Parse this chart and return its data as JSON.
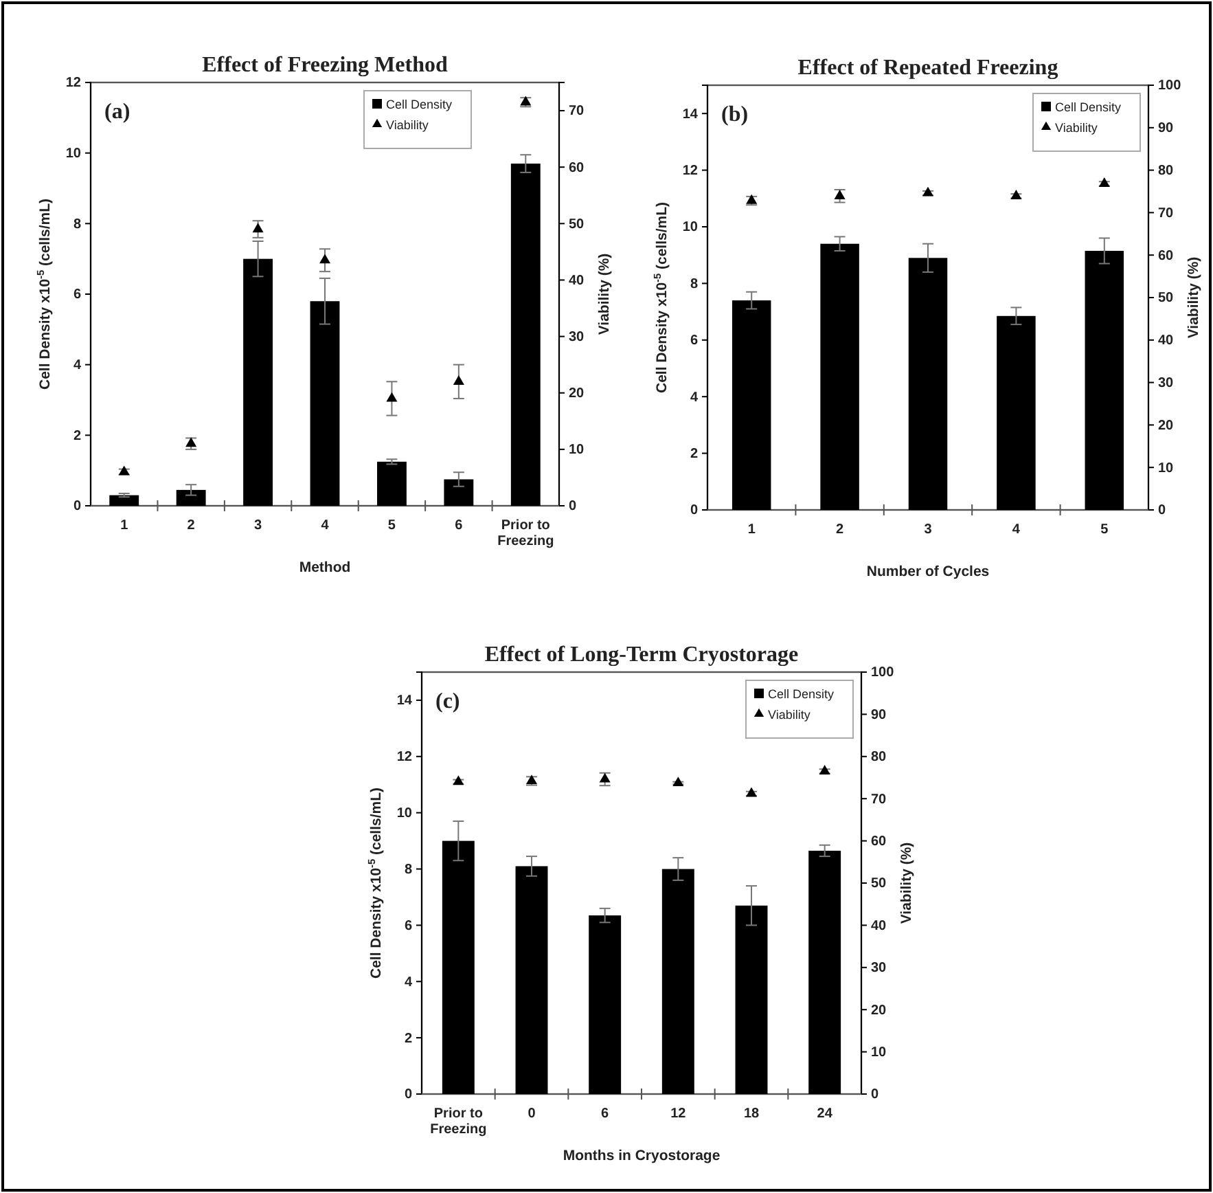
{
  "chart_data": [
    {
      "type": "bar",
      "title": "Effect of Freezing Method",
      "xlabel": "Method",
      "ylabel": "Cell Density x10$^{-5}$ (cells/mL)",
      "y2label": "Viability (%)",
      "annotations": [
        "(a)"
      ],
      "categories": [
        "1",
        "2",
        "3",
        "4",
        "5",
        "6",
        "Prior to Freezing"
      ],
      "ylim": [
        0,
        12
      ],
      "yticks": [
        0,
        2,
        4,
        6,
        8,
        10,
        12
      ],
      "y2lim": [
        0,
        75
      ],
      "y2ticks": [
        0,
        10,
        20,
        30,
        40,
        50,
        60,
        70
      ],
      "legend": "top right",
      "grid": false,
      "series": [
        {
          "name": "Cell Density",
          "color": "#000000",
          "values": [
            0.3,
            0.45,
            7.0,
            5.8,
            1.25,
            0.75,
            9.7
          ],
          "errors": [
            0.05,
            0.15,
            0.5,
            0.65,
            0.07,
            0.2,
            0.25
          ]
        },
        {
          "type": "scatter",
          "name": "Viability",
          "color": "#000000",
          "axis": "y2",
          "marker": "triangle",
          "values": [
            6,
            11,
            49,
            43.5,
            19,
            22,
            71.5
          ],
          "errors": [
            0.5,
            1,
            1.5,
            2,
            3,
            3,
            0.8
          ]
        }
      ]
    },
    {
      "type": "bar",
      "title": "Effect of Repeated Freezing",
      "xlabel": "Number of Cycles",
      "ylabel": "Cell Density x10$^{-5}$ (cells/mL)",
      "y2label": "Viability (%)",
      "annotations": [
        "(b)"
      ],
      "categories": [
        "1",
        "2",
        "3",
        "4",
        "5"
      ],
      "ylim": [
        0,
        15
      ],
      "yticks": [
        0,
        2,
        4,
        6,
        8,
        10,
        12,
        14
      ],
      "y2lim": [
        0,
        100
      ],
      "y2ticks": [
        0,
        10,
        20,
        30,
        40,
        50,
        60,
        70,
        80,
        90,
        100
      ],
      "legend": "top right",
      "grid": false,
      "series": [
        {
          "name": "Cell Density",
          "color": "#000000",
          "values": [
            7.4,
            9.4,
            8.9,
            6.85,
            9.15
          ],
          "errors": [
            0.3,
            0.25,
            0.5,
            0.3,
            0.45
          ]
        },
        {
          "type": "scatter",
          "name": "Viability",
          "color": "#000000",
          "axis": "y2",
          "marker": "triangle",
          "values": [
            72.8,
            73.9,
            74.6,
            73.9,
            76.8
          ],
          "errors": [
            1,
            1.5,
            0.5,
            0.5,
            0.5
          ]
        }
      ]
    },
    {
      "type": "bar",
      "title": "Effect of Long-Term Cryostorage",
      "xlabel": "Months in Cryostorage",
      "ylabel": "Cell Density x10$^{-5}$ (cells/mL)",
      "y2label": "Viability (%)",
      "annotations": [
        "(c)"
      ],
      "categories": [
        "Prior to Freezing",
        "0",
        "6",
        "12",
        "18",
        "24"
      ],
      "ylim": [
        0,
        15
      ],
      "yticks": [
        0,
        2,
        4,
        6,
        8,
        10,
        12,
        14
      ],
      "y2lim": [
        0,
        100
      ],
      "y2ticks": [
        0,
        10,
        20,
        30,
        40,
        50,
        60,
        70,
        80,
        90,
        100
      ],
      "legend": "top right",
      "grid": false,
      "series": [
        {
          "name": "Cell Density",
          "color": "#000000",
          "values": [
            9.0,
            8.1,
            6.35,
            8.0,
            6.7,
            8.65
          ],
          "errors": [
            0.7,
            0.35,
            0.25,
            0.4,
            0.7,
            0.2
          ]
        },
        {
          "type": "scatter",
          "name": "Viability",
          "color": "#000000",
          "axis": "y2",
          "marker": "triangle",
          "values": [
            74.0,
            74.2,
            74.6,
            73.7,
            71.2,
            76.5
          ],
          "errors": [
            0.5,
            1,
            1.5,
            0.3,
            0.5,
            0.5
          ]
        }
      ]
    }
  ]
}
